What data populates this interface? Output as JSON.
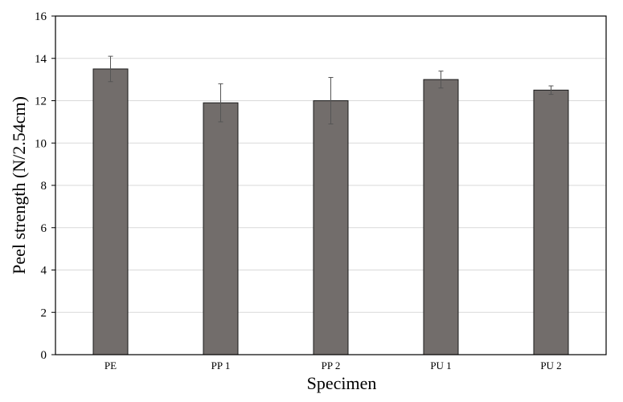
{
  "chart_data": {
    "type": "bar",
    "categories": [
      "PE",
      "PP 1",
      "PP 2",
      "PU 1",
      "PU 2"
    ],
    "values": [
      13.5,
      11.9,
      12.0,
      13.0,
      12.5
    ],
    "errors": [
      0.6,
      0.9,
      1.1,
      0.4,
      0.2
    ],
    "xlabel": "Specimen",
    "ylabel": "Peel strength (N/2.54cm)",
    "ylim": [
      0,
      16
    ],
    "yticks": [
      "0",
      "2",
      "4",
      "6",
      "8",
      "10",
      "12",
      "14",
      "16"
    ],
    "grid": true,
    "legend": "none"
  },
  "colors": {
    "bar_fill": "#726d6b",
    "bar_stroke": "#1a1a1a",
    "gridline": "#d9d9d9",
    "axis": "#000000",
    "error_bar": "#555555"
  }
}
